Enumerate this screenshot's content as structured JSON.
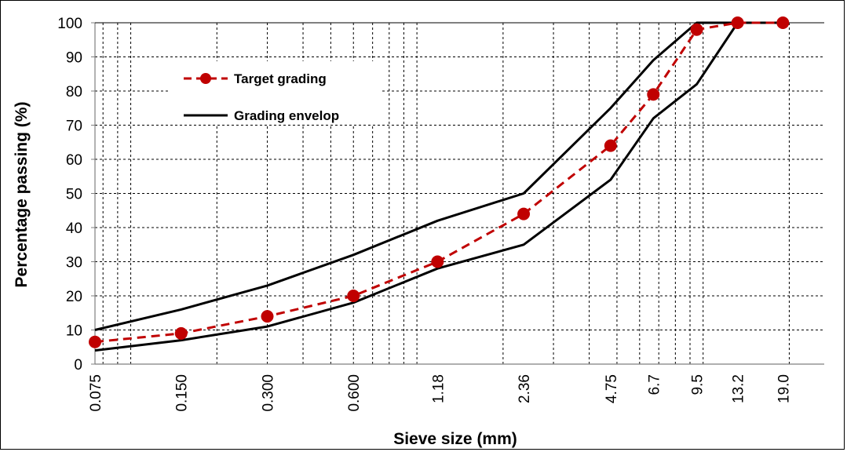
{
  "chart_data": {
    "type": "line",
    "xlabel": "Sieve size (mm)",
    "ylabel": "Percentage passing (%)",
    "x_scale": "log",
    "xlim": [
      0.075,
      26.5
    ],
    "ylim": [
      0,
      100
    ],
    "y_ticks": [
      0,
      10,
      20,
      30,
      40,
      50,
      60,
      70,
      80,
      90,
      100
    ],
    "x_tick_labels": [
      "0.075",
      "0.150",
      "0.300",
      "0.600",
      "1.18",
      "2.36",
      "4.75",
      "6.7",
      "9.5",
      "13.2",
      "19.0"
    ],
    "x_tick_values": [
      0.075,
      0.15,
      0.3,
      0.6,
      1.18,
      2.36,
      4.75,
      6.7,
      9.5,
      13.2,
      19.0
    ],
    "grid": true,
    "legend_position": "top-left",
    "series": [
      {
        "name": "Target grading",
        "style": "dashed-with-markers",
        "color": "#c00000",
        "x": [
          0.075,
          0.15,
          0.3,
          0.6,
          1.18,
          2.36,
          4.75,
          6.7,
          9.5,
          13.2,
          19.0
        ],
        "values": [
          6.5,
          9,
          14,
          20,
          30,
          44,
          64,
          79,
          98,
          100,
          100
        ]
      },
      {
        "name": "Grading envelop",
        "style": "solid",
        "color": "#000000",
        "x": [
          0.075,
          0.15,
          0.3,
          0.6,
          1.18,
          2.36,
          4.75,
          6.7,
          9.5,
          13.2,
          19.0
        ],
        "values": [
          10,
          16,
          23,
          32,
          42,
          50,
          75,
          89,
          100,
          100,
          100
        ]
      },
      {
        "name": "",
        "style": "solid",
        "color": "#000000",
        "x": [
          0.075,
          0.15,
          0.3,
          0.6,
          1.18,
          2.36,
          4.75,
          6.7,
          9.5,
          13.2,
          19.0
        ],
        "values": [
          4,
          7,
          11,
          18,
          28,
          35,
          54,
          72,
          82,
          100,
          100
        ]
      }
    ]
  }
}
